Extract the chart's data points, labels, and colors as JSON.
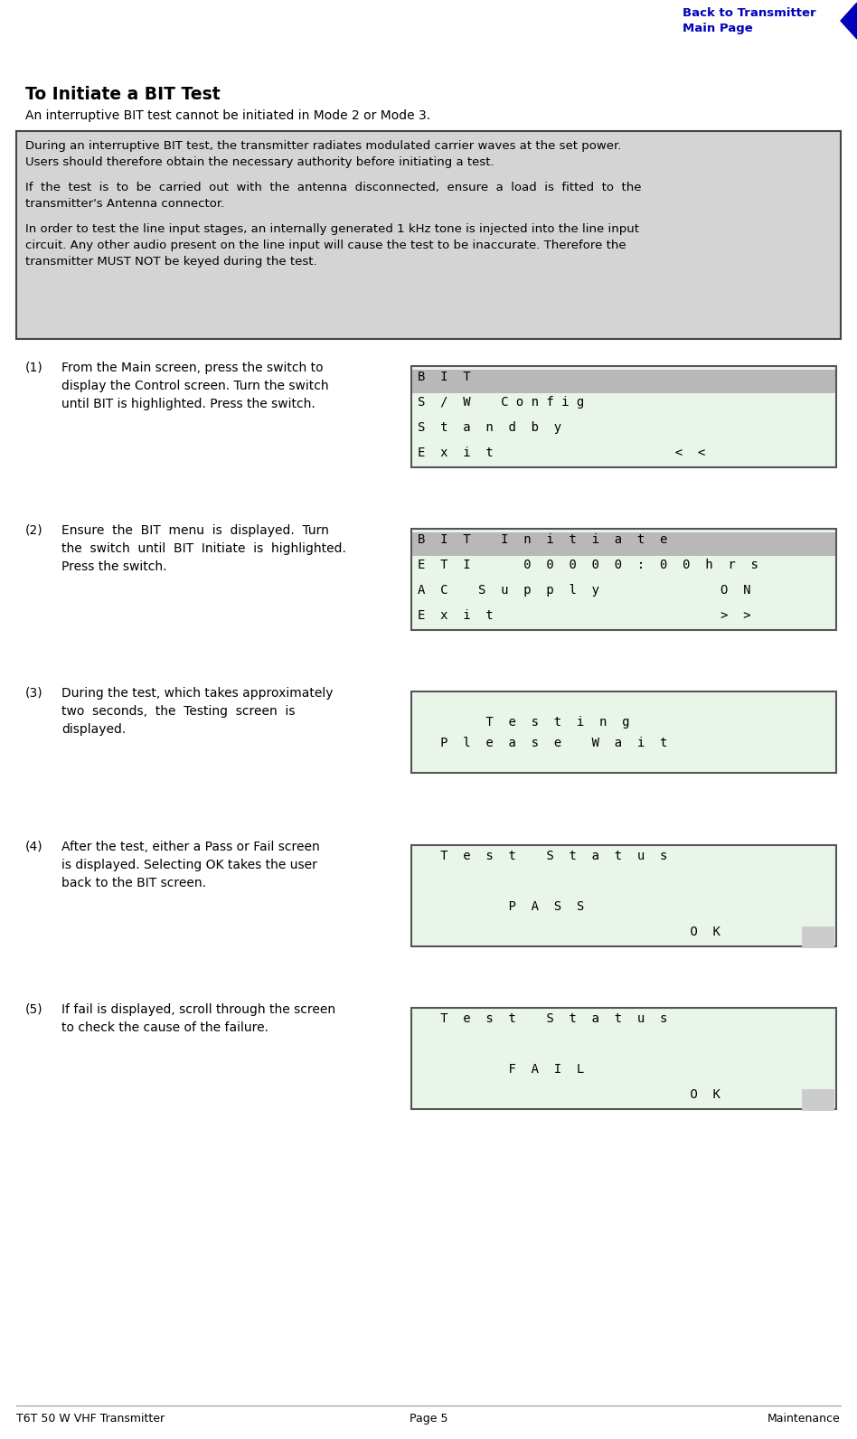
{
  "page_bg": "#ffffff",
  "nav_text_line1": "Back to Transmitter",
  "nav_text_line2": "Main Page",
  "nav_color": "#0000bb",
  "title": "To Initiate a BIT Test",
  "subtitle": "An interruptive BIT test cannot be initiated in Mode 2 or Mode 3.",
  "warning_box_bg": "#d4d4d4",
  "warning_paragraphs": [
    "During an interruptive BIT test, the transmitter radiates modulated carrier waves at the set power.\nUsers should therefore obtain the necessary authority before initiating a test.",
    "If  the  test  is  to  be  carried  out  with  the  antenna  disconnected,  ensure  a  load  is  fitted  to  the\ntransmitter's Antenna connector.",
    "In order to test the line input stages, an internally generated 1 kHz tone is injected into the line input\ncircuit. Any other audio present on the line input will cause the test to be inaccurate. Therefore the\ntransmitter MUST NOT be keyed during the test."
  ],
  "steps": [
    {
      "num": "(1)",
      "text": "From the Main screen, press the switch to\ndisplay the Control screen. Turn the switch\nuntil BIT is highlighted. Press the switch.",
      "screen_lines": [
        "B  I  T",
        "S  /  W    C o n f i g",
        "S  t  a  n  d  b  y",
        "E  x  i  t                        <  <"
      ],
      "screen_bg": "#e8f5e8",
      "highlight_row": 0
    },
    {
      "num": "(2)",
      "text": "Ensure  the  BIT  menu  is  displayed.  Turn\nthe  switch  until  BIT  Initiate  is  highlighted.\nPress the switch.",
      "screen_lines": [
        "B  I  T    I  n  i  t  i  a  t  e",
        "E  T  I       0  0  0  0  0  :  0  0  h  r  s",
        "A  C    S  u  p  p  l  y                O  N",
        "E  x  i  t                              >  >"
      ],
      "screen_bg": "#e8f5e8",
      "highlight_row": 0
    },
    {
      "num": "(3)",
      "text": "During the test, which takes approximately\ntwo  seconds,  the  Testing  screen  is\ndisplayed.",
      "screen_lines": [
        "",
        "         T  e  s  t  i  n  g",
        "   P  l  e  a  s  e    W  a  i  t",
        ""
      ],
      "screen_bg": "#e8f5e8",
      "highlight_row": -1
    },
    {
      "num": "(4)",
      "text": "After the test, either a Pass or Fail screen\nis displayed. Selecting OK takes the user\nback to the BIT screen.",
      "screen_lines": [
        "   T  e  s  t    S  t  a  t  u  s",
        "",
        "            P  A  S  S",
        "                                    O  K"
      ],
      "screen_bg": "#e8f5e8",
      "highlight_row": -1
    },
    {
      "num": "(5)",
      "text": "If fail is displayed, scroll through the screen\nto check the cause of the failure.",
      "screen_lines": [
        "   T  e  s  t    S  t  a  t  u  s",
        "",
        "            F  A  I  L",
        "                                    O  K"
      ],
      "screen_bg": "#e8f5e8",
      "highlight_row": -1
    }
  ],
  "footer_left": "T6T 50 W VHF Transmitter",
  "footer_center": "Page 5",
  "footer_right": "Maintenance",
  "text_color": "#000000",
  "mono_font": "monospace"
}
